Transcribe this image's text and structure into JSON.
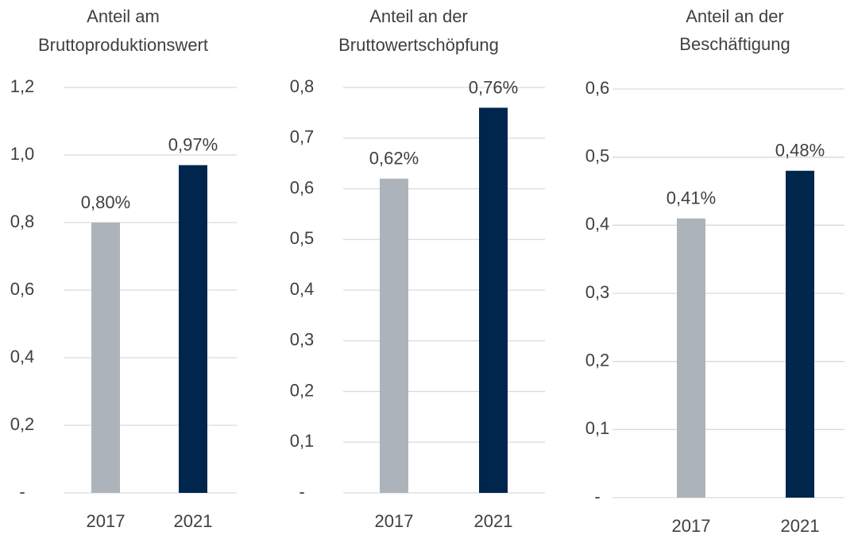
{
  "chart_data": [
    {
      "type": "bar",
      "title": [
        "Anteil am",
        "Bruttoproduktionswert"
      ],
      "categories": [
        "2017",
        "2021"
      ],
      "values": [
        0.8,
        0.97
      ],
      "value_labels": [
        "0,80%",
        "0,97%"
      ],
      "colors": [
        "#adb3ba",
        "#00264d"
      ],
      "ylim": [
        0,
        1.2
      ],
      "yticks": [
        {
          "value": 0,
          "label": "-"
        },
        {
          "value": 0.2,
          "label": "0,2"
        },
        {
          "value": 0.4,
          "label": "0,4"
        },
        {
          "value": 0.6,
          "label": "0,6"
        },
        {
          "value": 0.8,
          "label": "0,8"
        },
        {
          "value": 1.0,
          "label": "1,0"
        },
        {
          "value": 1.2,
          "label": "1,2"
        }
      ],
      "grid": true
    },
    {
      "type": "bar",
      "title": [
        "Anteil an der",
        "Bruttowertschöpfung"
      ],
      "categories": [
        "2017",
        "2021"
      ],
      "values": [
        0.62,
        0.76
      ],
      "value_labels": [
        "0,62%",
        "0,76%"
      ],
      "colors": [
        "#adb3ba",
        "#00264d"
      ],
      "ylim": [
        0,
        0.8
      ],
      "yticks": [
        {
          "value": 0,
          "label": "-"
        },
        {
          "value": 0.1,
          "label": "0,1"
        },
        {
          "value": 0.2,
          "label": "0,2"
        },
        {
          "value": 0.3,
          "label": "0,3"
        },
        {
          "value": 0.4,
          "label": "0,4"
        },
        {
          "value": 0.5,
          "label": "0,5"
        },
        {
          "value": 0.6,
          "label": "0,6"
        },
        {
          "value": 0.7,
          "label": "0,7"
        },
        {
          "value": 0.8,
          "label": "0,8"
        }
      ],
      "grid": true
    },
    {
      "type": "bar",
      "title": [
        "Anteil an der",
        "Beschäftigung"
      ],
      "categories": [
        "2017",
        "2021"
      ],
      "values": [
        0.41,
        0.48
      ],
      "value_labels": [
        "0,41%",
        "0,48%"
      ],
      "colors": [
        "#adb3ba",
        "#00264d"
      ],
      "ylim": [
        0,
        0.6
      ],
      "yticks": [
        {
          "value": 0,
          "label": "-"
        },
        {
          "value": 0.1,
          "label": "0,1"
        },
        {
          "value": 0.2,
          "label": "0,2"
        },
        {
          "value": 0.3,
          "label": "0,3"
        },
        {
          "value": 0.4,
          "label": "0,4"
        },
        {
          "value": 0.5,
          "label": "0,5"
        },
        {
          "value": 0.6,
          "label": "0,6"
        }
      ],
      "grid": true
    }
  ]
}
